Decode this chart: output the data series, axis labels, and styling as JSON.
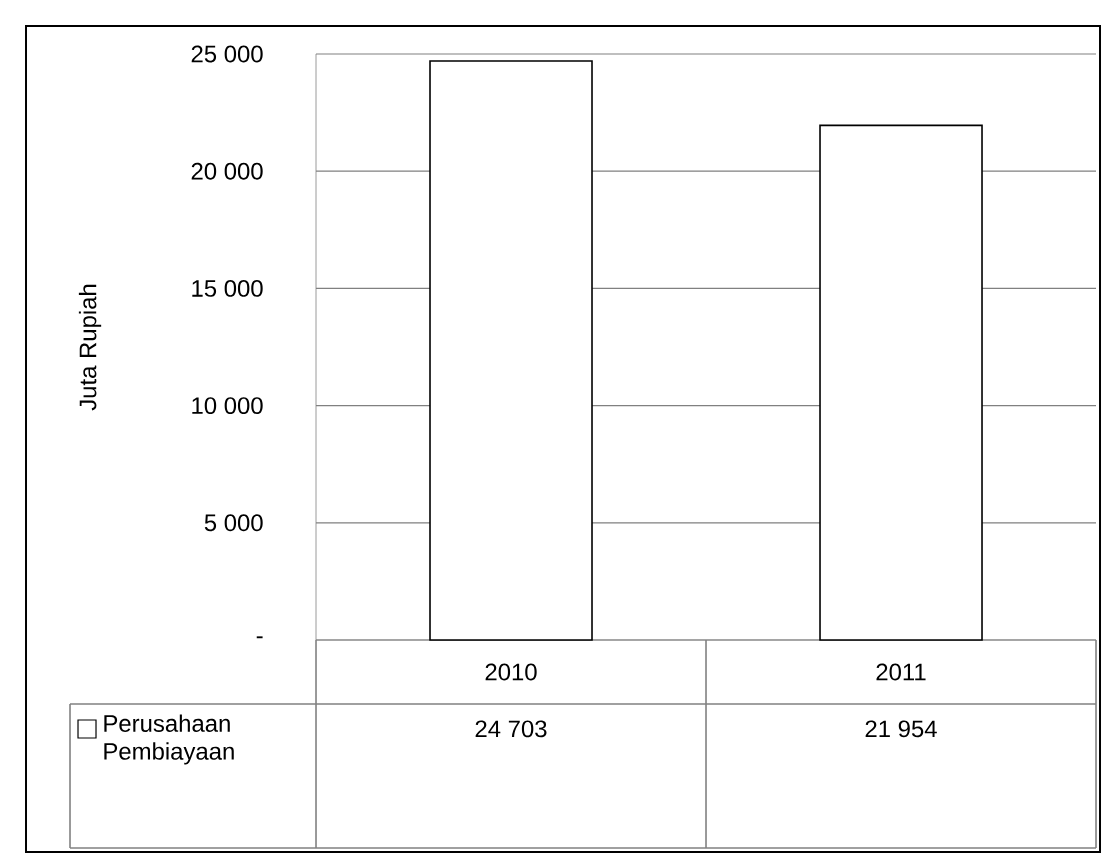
{
  "chart_data": {
    "type": "bar",
    "ylabel": "Juta Rupiah",
    "categories": [
      "2010",
      "2011"
    ],
    "series": [
      {
        "name": "Perusahaan Pembiayaan",
        "color": "#ffffff",
        "values": [
          24703,
          21954
        ],
        "value_labels": [
          "24 703",
          "21 954"
        ]
      }
    ],
    "ylim": [
      0,
      25000
    ],
    "yticks": [
      {
        "value": 0,
        "label": "-"
      },
      {
        "value": 5000,
        "label": "5 000"
      },
      {
        "value": 10000,
        "label": "10 000"
      },
      {
        "value": 15000,
        "label": "15 000"
      },
      {
        "value": 20000,
        "label": "20 000"
      },
      {
        "value": 25000,
        "label": "25 000"
      }
    ],
    "grid": "y",
    "legend": "bottom"
  }
}
